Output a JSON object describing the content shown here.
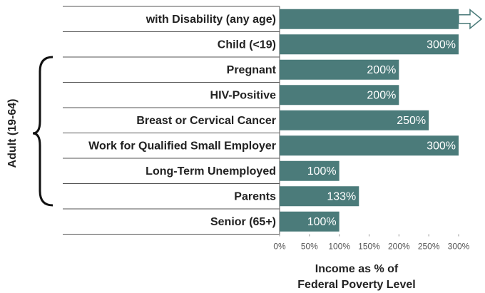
{
  "chart_data": {
    "type": "barh",
    "categories": [
      "with Disability (any age)",
      "Child (<19)",
      "Pregnant",
      "HIV-Positive",
      "Breast or Cervical Cancer",
      "Work for Qualified Small Employer",
      "Long-Term Unemployed",
      "Parents",
      "Senior (65+)"
    ],
    "values": [
      300,
      300,
      200,
      200,
      250,
      300,
      100,
      133,
      100
    ],
    "value_labels": [
      null,
      "300%",
      "200%",
      "200%",
      "250%",
      "300%",
      "100%",
      "133%",
      "100%"
    ],
    "color": "#4b7b7a",
    "xlim": [
      0,
      300
    ],
    "xticks": [
      {
        "value": 0,
        "label": "0%"
      },
      {
        "value": 50,
        "label": "50%"
      },
      {
        "value": 100,
        "label": "100%"
      },
      {
        "value": 150,
        "label": "150%"
      },
      {
        "value": 200,
        "label": "200%"
      },
      {
        "value": 250,
        "label": "250%"
      },
      {
        "value": 300,
        "label": "300%"
      }
    ],
    "xlabel": [
      "Income as % of",
      "Federal Poverty Level"
    ],
    "group_label": "Adult (19-64)"
  }
}
